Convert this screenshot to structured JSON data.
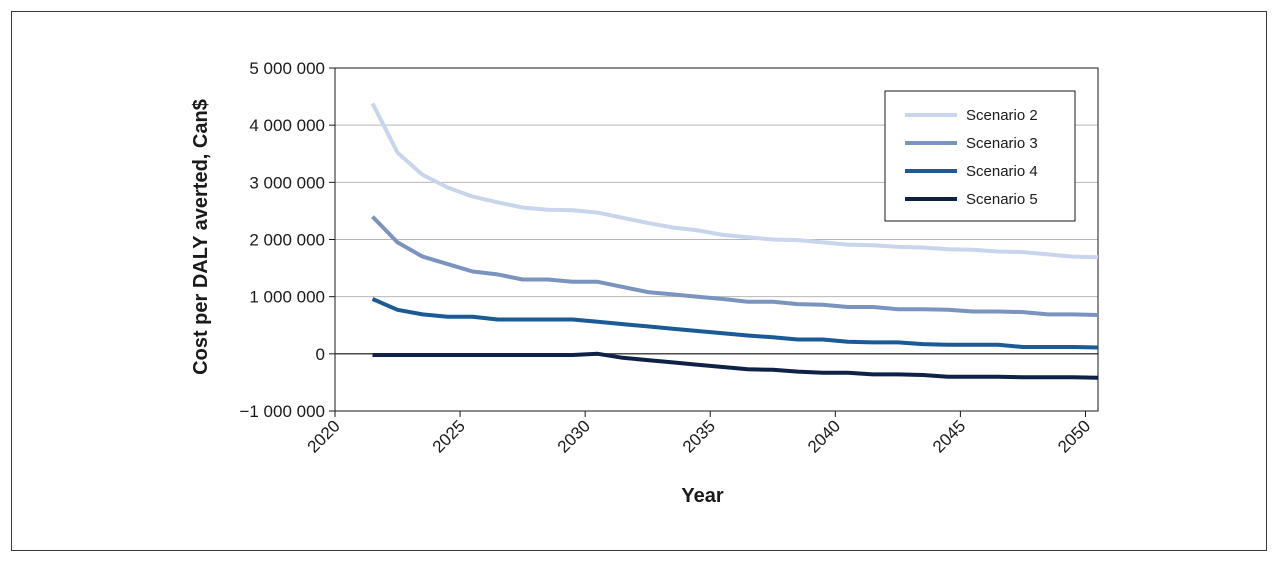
{
  "chart_data": {
    "type": "line",
    "title": "",
    "xlabel": "Year",
    "ylabel": "Cost per DALY averted, Can$",
    "xlim": [
      2020,
      2050.5
    ],
    "ylim": [
      -1000000,
      5000000
    ],
    "x_ticks": [
      2020,
      2025,
      2030,
      2035,
      2040,
      2045,
      2050
    ],
    "y_ticks": [
      5000000,
      4000000,
      3000000,
      2000000,
      1000000,
      0,
      -1000000
    ],
    "y_tick_labels": [
      "5 000 000",
      "4 000 000",
      "3 000 000",
      "2 000 000",
      "1 000 000",
      "0",
      "−1 000 000"
    ],
    "x_tick_labels": [
      "2020",
      "2025",
      "2030",
      "2035",
      "2040",
      "2045",
      "2050"
    ],
    "grid": "horizontal",
    "legend_position": "top-right",
    "x": [
      2021.5,
      2022.5,
      2023.5,
      2024.5,
      2025.5,
      2026.5,
      2027.5,
      2028.5,
      2029.5,
      2030.5,
      2031.5,
      2032.5,
      2033.5,
      2034.5,
      2035.5,
      2036.5,
      2037.5,
      2038.5,
      2039.5,
      2040.5,
      2041.5,
      2042.5,
      2043.5,
      2044.5,
      2045.5,
      2046.5,
      2047.5,
      2048.5,
      2049.5,
      2050.5
    ],
    "series": [
      {
        "name": "Scenario 2",
        "color": "#c8d5ec",
        "values": [
          4380000,
          3520000,
          3130000,
          2910000,
          2750000,
          2650000,
          2560000,
          2520000,
          2510000,
          2470000,
          2380000,
          2290000,
          2210000,
          2160000,
          2080000,
          2040000,
          2000000,
          1990000,
          1950000,
          1910000,
          1900000,
          1870000,
          1860000,
          1830000,
          1820000,
          1790000,
          1780000,
          1740000,
          1700000,
          1690000
        ]
      },
      {
        "name": "Scenario 3",
        "color": "#7a93bf",
        "values": [
          2400000,
          1950000,
          1700000,
          1570000,
          1440000,
          1390000,
          1300000,
          1300000,
          1260000,
          1260000,
          1170000,
          1080000,
          1040000,
          1000000,
          960000,
          910000,
          910000,
          870000,
          860000,
          820000,
          820000,
          780000,
          780000,
          770000,
          740000,
          740000,
          730000,
          690000,
          690000,
          680000
        ]
      },
      {
        "name": "Scenario 4",
        "color": "#1a5a96",
        "values": [
          960000,
          770000,
          690000,
          650000,
          650000,
          600000,
          600000,
          600000,
          600000,
          560000,
          520000,
          480000,
          440000,
          400000,
          360000,
          320000,
          290000,
          250000,
          250000,
          210000,
          200000,
          200000,
          170000,
          160000,
          160000,
          160000,
          120000,
          120000,
          120000,
          110000
        ]
      },
      {
        "name": "Scenario 5",
        "color": "#0f2147",
        "values": [
          -20000,
          -20000,
          -20000,
          -20000,
          -20000,
          -20000,
          -20000,
          -20000,
          -20000,
          0,
          -70000,
          -110000,
          -150000,
          -190000,
          -230000,
          -270000,
          -280000,
          -310000,
          -330000,
          -330000,
          -360000,
          -360000,
          -370000,
          -400000,
          -400000,
          -400000,
          -410000,
          -410000,
          -410000,
          -420000
        ]
      }
    ]
  }
}
